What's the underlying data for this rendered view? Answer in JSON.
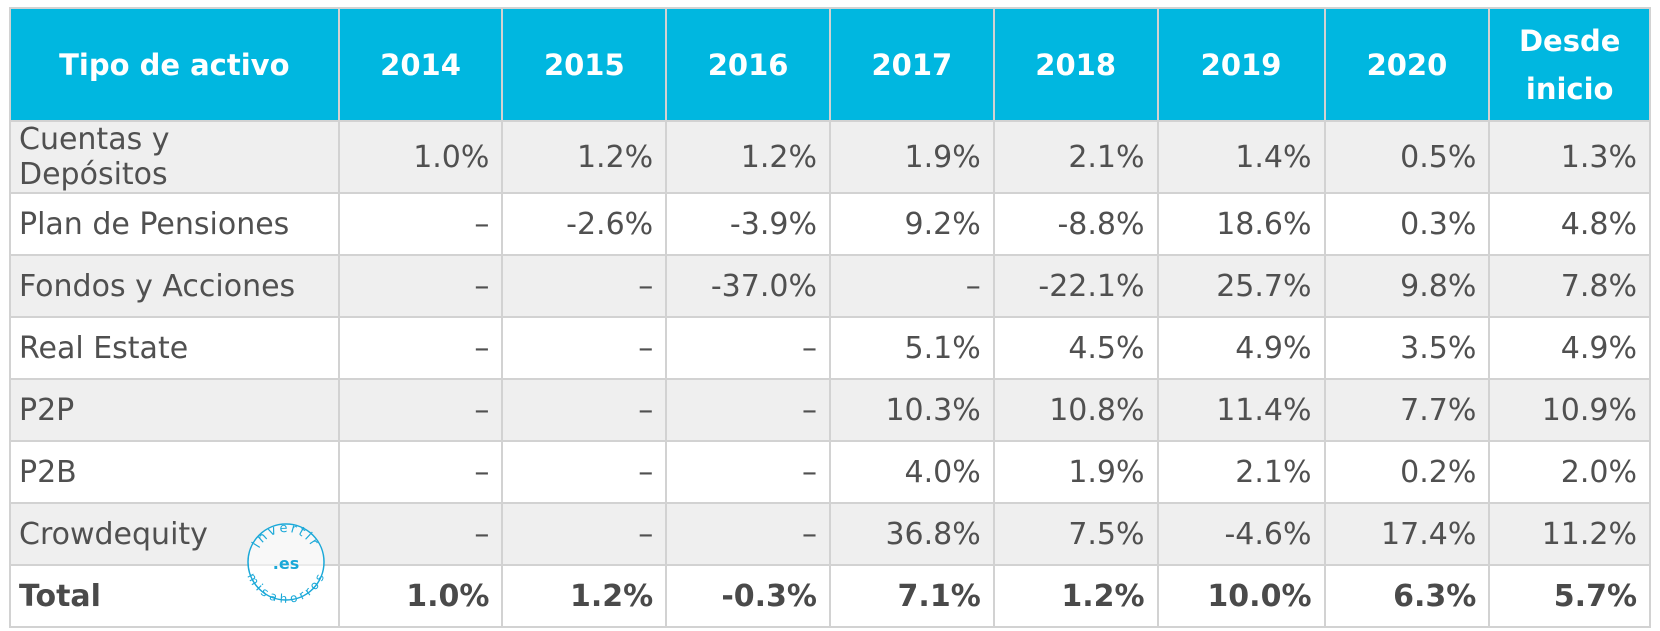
{
  "table": {
    "headers": [
      "Tipo de activo",
      "2014",
      "2015",
      "2016",
      "2017",
      "2018",
      "2019",
      "2020",
      "Desde inicio"
    ],
    "rows": [
      {
        "label": "Cuentas y Depósitos",
        "values": [
          "1.0%",
          "1.2%",
          "1.2%",
          "1.9%",
          "2.1%",
          "1.4%",
          "0.5%",
          "1.3%"
        ]
      },
      {
        "label": "Plan de Pensiones",
        "values": [
          "–",
          "-2.6%",
          "-3.9%",
          "9.2%",
          "-8.8%",
          "18.6%",
          "0.3%",
          "4.8%"
        ]
      },
      {
        "label": "Fondos y Acciones",
        "values": [
          "–",
          "–",
          "-37.0%",
          "–",
          "-22.1%",
          "25.7%",
          "9.8%",
          "7.8%"
        ]
      },
      {
        "label": "Real Estate",
        "values": [
          "–",
          "–",
          "–",
          "5.1%",
          "4.5%",
          "4.9%",
          "3.5%",
          "4.9%"
        ]
      },
      {
        "label": "P2P",
        "values": [
          "–",
          "–",
          "–",
          "10.3%",
          "10.8%",
          "11.4%",
          "7.7%",
          "10.9%"
        ]
      },
      {
        "label": "P2B",
        "values": [
          "–",
          "–",
          "–",
          "4.0%",
          "1.9%",
          "2.1%",
          "0.2%",
          "2.0%"
        ]
      },
      {
        "label": "Crowdequity",
        "values": [
          "–",
          "–",
          "–",
          "36.8%",
          "7.5%",
          "-4.6%",
          "17.4%",
          "11.2%"
        ]
      }
    ],
    "total": {
      "label": "Total",
      "values": [
        "1.0%",
        "1.2%",
        "-0.3%",
        "7.1%",
        "1.2%",
        "10.0%",
        "6.3%",
        "5.7%"
      ]
    }
  },
  "watermark": {
    "top_text": "invertir",
    "center_text": ".es",
    "bottom_text": "misahorros"
  },
  "colors": {
    "header_bg": "#00b7e0",
    "header_text": "#ffffff",
    "row_alt_bg": "#efefef",
    "grid": "#d2d2d2",
    "watermark": "#1aa8d8"
  }
}
